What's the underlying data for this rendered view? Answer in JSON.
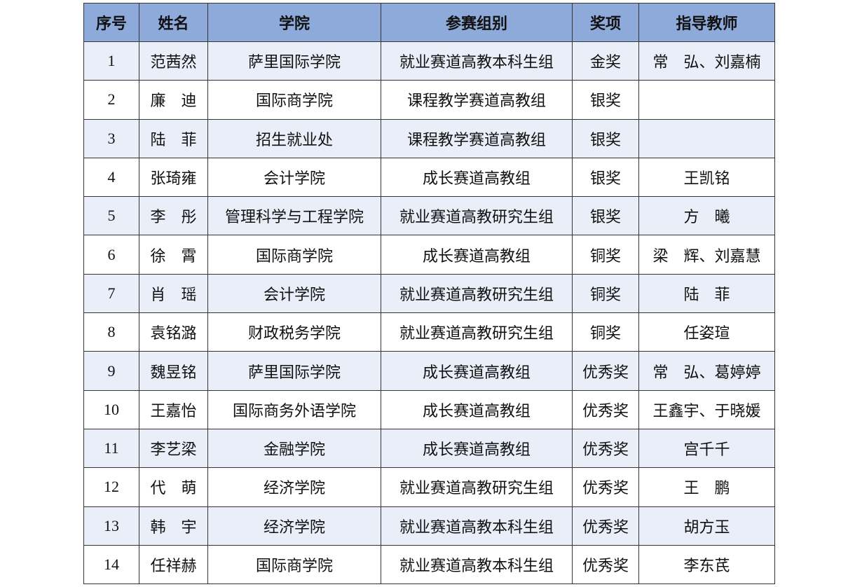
{
  "colors": {
    "header_bg": "#8eaadb",
    "alt_row_bg": "#e9eef8"
  },
  "table": {
    "headers": [
      "序号",
      "姓名",
      "学院",
      "参赛组别",
      "奖项",
      "指导教师"
    ],
    "rows": [
      [
        "1",
        "范茜然",
        "萨里国际学院",
        "就业赛道高教本科生组",
        "金奖",
        "常　弘、刘嘉楠"
      ],
      [
        "2",
        "廉　迪",
        "国际商学院",
        "课程教学赛道高教组",
        "银奖",
        ""
      ],
      [
        "3",
        "陆　菲",
        "招生就业处",
        "课程教学赛道高教组",
        "银奖",
        ""
      ],
      [
        "4",
        "张琦雍",
        "会计学院",
        "成长赛道高教组",
        "银奖",
        "王凯铭"
      ],
      [
        "5",
        "李　彤",
        "管理科学与工程学院",
        "就业赛道高教研究生组",
        "银奖",
        "方　曦"
      ],
      [
        "6",
        "徐　霄",
        "国际商学院",
        "成长赛道高教组",
        "铜奖",
        "梁　辉、刘嘉慧"
      ],
      [
        "7",
        "肖　瑶",
        "会计学院",
        "就业赛道高教研究生组",
        "铜奖",
        "陆　菲"
      ],
      [
        "8",
        "袁铭潞",
        "财政税务学院",
        "就业赛道高教研究生组",
        "铜奖",
        "任姿瑄"
      ],
      [
        "9",
        "魏昱铭",
        "萨里国际学院",
        "成长赛道高教组",
        "优秀奖",
        "常　弘、葛婷婷"
      ],
      [
        "10",
        "王嘉怡",
        "国际商务外语学院",
        "成长赛道高教组",
        "优秀奖",
        "王鑫宇、于晓媛"
      ],
      [
        "11",
        "李艺梁",
        "金融学院",
        "成长赛道高教组",
        "优秀奖",
        "宫千千"
      ],
      [
        "12",
        "代　萌",
        "经济学院",
        "就业赛道高教研究生组",
        "优秀奖",
        "王　鹏"
      ],
      [
        "13",
        "韩　宇",
        "经济学院",
        "就业赛道高教本科生组",
        "优秀奖",
        "胡方玉"
      ],
      [
        "14",
        "任祥赫",
        "国际商学院",
        "就业赛道高教本科生组",
        "优秀奖",
        "李东芪"
      ]
    ]
  }
}
